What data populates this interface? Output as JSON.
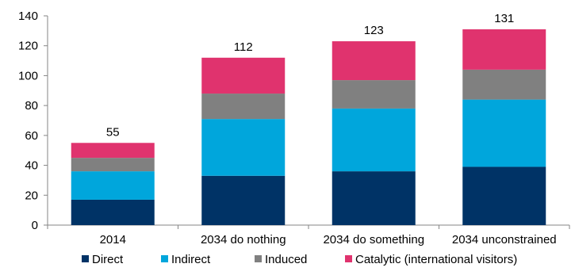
{
  "chart_data": {
    "type": "bar",
    "stacked": true,
    "categories": [
      "2014",
      "2034 do nothing",
      "2034 do something",
      "2034 unconstrained"
    ],
    "series": [
      {
        "name": "Direct",
        "values": [
          17,
          33,
          36,
          39
        ],
        "color": "#003366"
      },
      {
        "name": "Indirect",
        "values": [
          19,
          38,
          42,
          45
        ],
        "color": "#00a6dc"
      },
      {
        "name": "Induced",
        "values": [
          9,
          17,
          19,
          20
        ],
        "color": "#808080"
      },
      {
        "name": "Catalytic (international visitors)",
        "values": [
          10,
          24,
          26,
          27
        ],
        "color": "#e0336e"
      }
    ],
    "totals": [
      55,
      112,
      123,
      131
    ],
    "total_labels": [
      "55",
      "112",
      "123",
      "131"
    ],
    "ylim": [
      0,
      140
    ],
    "yticks": [
      0,
      20,
      40,
      60,
      80,
      100,
      120,
      140
    ],
    "ytick_labels": [
      "0",
      "20",
      "40",
      "60",
      "80",
      "100",
      "120",
      "140"
    ],
    "grid": false,
    "legend_position": "bottom"
  }
}
